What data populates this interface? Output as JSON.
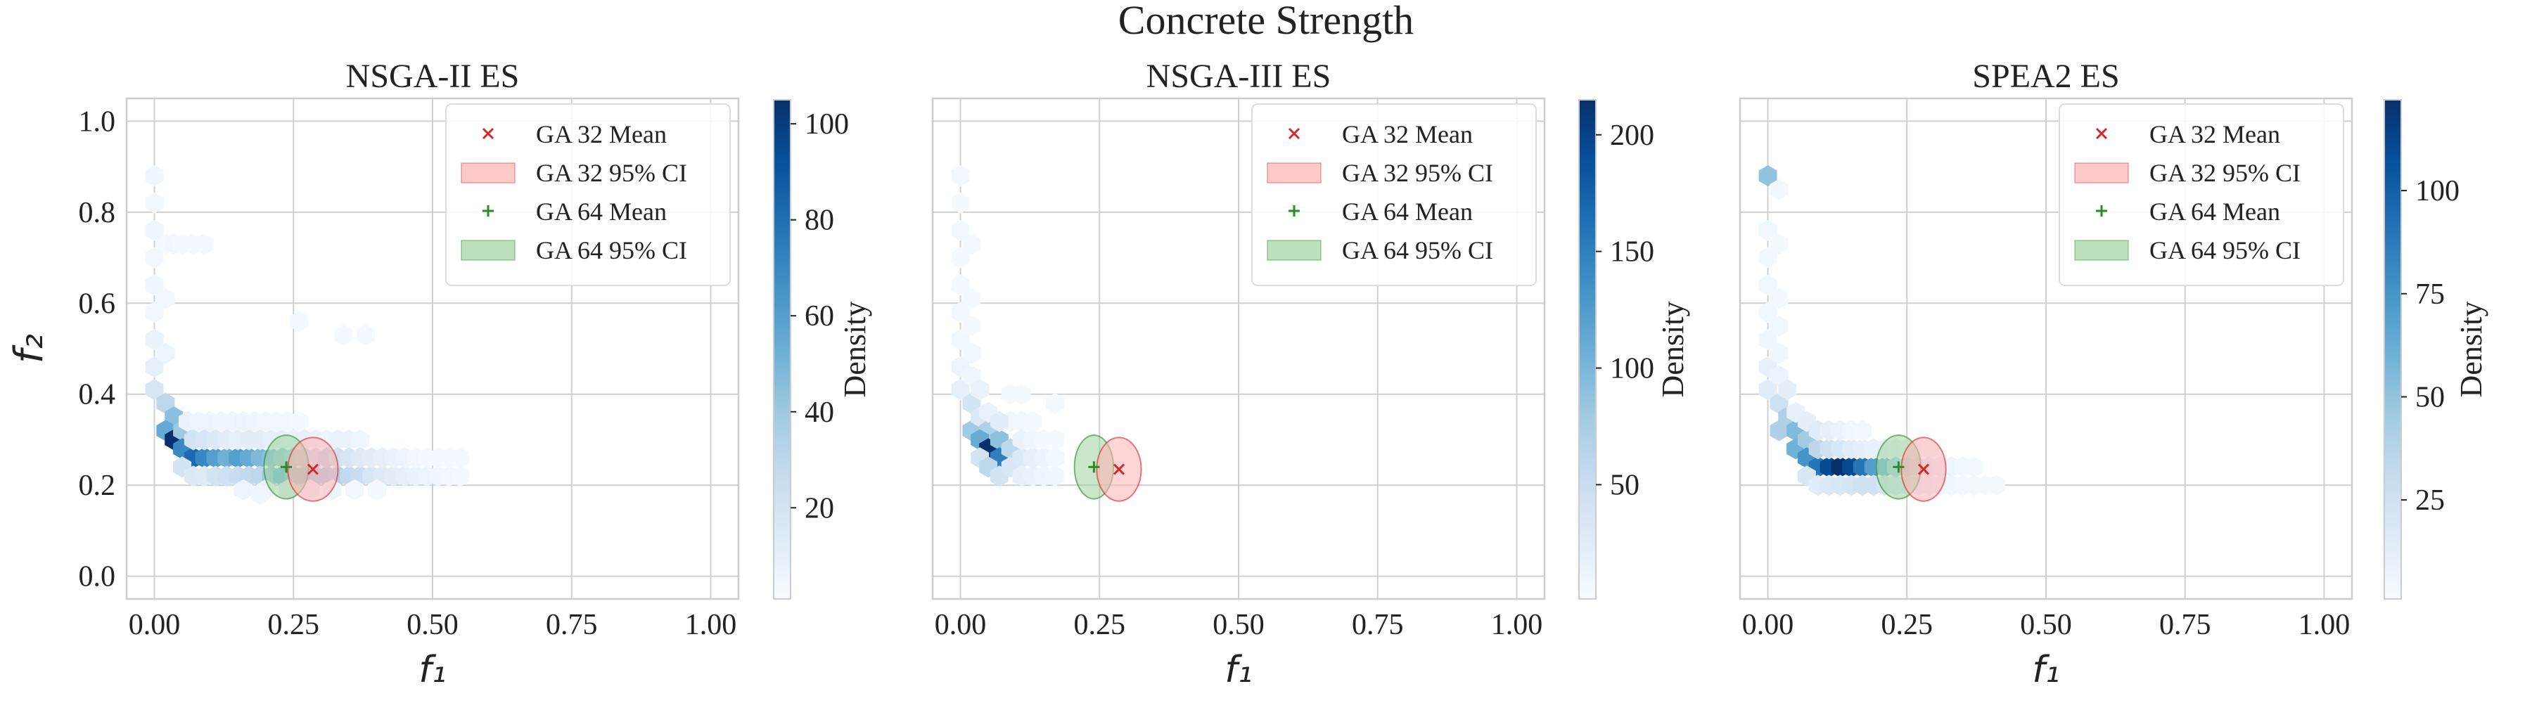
{
  "figure": {
    "title": "Concrete Strength",
    "colors": {
      "axes_bg": "#ffffff",
      "grid": "#d0d0d0",
      "frame": "#cccccc",
      "text": "#222222",
      "ga32": "#d62728",
      "ga32_fill": "#ffb3b3",
      "ga64": "#2a8a2a",
      "ga64_fill": "#9fd39f",
      "cmap": [
        "#f7fbff",
        "#deebf7",
        "#c6dbef",
        "#9ecae1",
        "#6baed6",
        "#4292c6",
        "#2171b5",
        "#08519c",
        "#08306b"
      ]
    }
  },
  "chart_data": [
    {
      "type": "hexbin",
      "title": "NSGA-II ES",
      "xlabel": "f₁",
      "ylabel": "f₂",
      "xlim": [
        -0.05,
        1.05
      ],
      "ylim": [
        -0.05,
        1.05
      ],
      "xticks": [
        0.0,
        0.25,
        0.5,
        0.75,
        1.0
      ],
      "xtick_labels": [
        "0.00",
        "0.25",
        "0.50",
        "0.75",
        "1.00"
      ],
      "yticks": [
        0.0,
        0.2,
        0.4,
        0.6,
        0.8,
        1.0
      ],
      "ytick_labels": [
        "0.0",
        "0.2",
        "0.4",
        "0.6",
        "0.8",
        "1.0"
      ],
      "grid": true,
      "legend_position": "top-right",
      "legend": [
        "GA 32 Mean",
        "GA 32 95% CI",
        "GA 64 Mean",
        "GA 64 95% CI"
      ],
      "colorbar": {
        "label": "Density",
        "min": 1,
        "max": 105,
        "ticks": [
          20,
          40,
          60,
          80,
          100
        ],
        "tick_labels": [
          "20",
          "40",
          "60",
          "80",
          "100"
        ]
      },
      "bins": [
        [
          0.0,
          0.88,
          5
        ],
        [
          0.0,
          0.82,
          4
        ],
        [
          0.0,
          0.76,
          5
        ],
        [
          0.0,
          0.7,
          4
        ],
        [
          0.0,
          0.64,
          5
        ],
        [
          0.0,
          0.58,
          4
        ],
        [
          0.0,
          0.52,
          8
        ],
        [
          0.0,
          0.46,
          10
        ],
        [
          0.0,
          0.41,
          18
        ],
        [
          0.02,
          0.73,
          3
        ],
        [
          0.02,
          0.61,
          4
        ],
        [
          0.02,
          0.49,
          6
        ],
        [
          0.02,
          0.38,
          30
        ],
        [
          0.035,
          0.73,
          4
        ],
        [
          0.035,
          0.35,
          45
        ],
        [
          0.05,
          0.73,
          3
        ],
        [
          0.07,
          0.73,
          3
        ],
        [
          0.09,
          0.73,
          3
        ],
        [
          0.02,
          0.32,
          55
        ],
        [
          0.035,
          0.3,
          105
        ],
        [
          0.05,
          0.32,
          40
        ],
        [
          0.05,
          0.28,
          70
        ],
        [
          0.07,
          0.26,
          82
        ],
        [
          0.09,
          0.26,
          70
        ],
        [
          0.11,
          0.26,
          60
        ],
        [
          0.13,
          0.26,
          52
        ],
        [
          0.15,
          0.26,
          60
        ],
        [
          0.17,
          0.26,
          55
        ],
        [
          0.19,
          0.26,
          48
        ],
        [
          0.21,
          0.26,
          45
        ],
        [
          0.07,
          0.3,
          20
        ],
        [
          0.09,
          0.3,
          18
        ],
        [
          0.11,
          0.3,
          15
        ],
        [
          0.13,
          0.3,
          12
        ],
        [
          0.15,
          0.3,
          10
        ],
        [
          0.17,
          0.3,
          12
        ],
        [
          0.19,
          0.3,
          12
        ],
        [
          0.21,
          0.3,
          10
        ],
        [
          0.23,
          0.3,
          10
        ],
        [
          0.25,
          0.3,
          8
        ],
        [
          0.27,
          0.3,
          10
        ],
        [
          0.29,
          0.3,
          8
        ],
        [
          0.31,
          0.3,
          6
        ],
        [
          0.33,
          0.3,
          8
        ],
        [
          0.35,
          0.3,
          8
        ],
        [
          0.37,
          0.3,
          5
        ],
        [
          0.06,
          0.34,
          8
        ],
        [
          0.08,
          0.34,
          6
        ],
        [
          0.1,
          0.34,
          6
        ],
        [
          0.12,
          0.34,
          5
        ],
        [
          0.14,
          0.34,
          5
        ],
        [
          0.16,
          0.34,
          6
        ],
        [
          0.18,
          0.34,
          5
        ],
        [
          0.2,
          0.34,
          4
        ],
        [
          0.22,
          0.34,
          4
        ],
        [
          0.24,
          0.34,
          4
        ],
        [
          0.26,
          0.34,
          3
        ],
        [
          0.05,
          0.24,
          20
        ],
        [
          0.07,
          0.22,
          15
        ],
        [
          0.09,
          0.22,
          14
        ],
        [
          0.11,
          0.22,
          20
        ],
        [
          0.13,
          0.22,
          22
        ],
        [
          0.15,
          0.22,
          25
        ],
        [
          0.17,
          0.22,
          28
        ],
        [
          0.19,
          0.22,
          30
        ],
        [
          0.21,
          0.22,
          40
        ],
        [
          0.23,
          0.22,
          50
        ],
        [
          0.25,
          0.22,
          45
        ],
        [
          0.27,
          0.22,
          45
        ],
        [
          0.29,
          0.22,
          40
        ],
        [
          0.31,
          0.22,
          38
        ],
        [
          0.33,
          0.22,
          35
        ],
        [
          0.35,
          0.22,
          28
        ],
        [
          0.37,
          0.22,
          25
        ],
        [
          0.39,
          0.22,
          18
        ],
        [
          0.41,
          0.22,
          14
        ],
        [
          0.43,
          0.22,
          12
        ],
        [
          0.45,
          0.22,
          10
        ],
        [
          0.47,
          0.22,
          8
        ],
        [
          0.49,
          0.22,
          6
        ],
        [
          0.51,
          0.22,
          5
        ],
        [
          0.53,
          0.22,
          4
        ],
        [
          0.55,
          0.22,
          3
        ],
        [
          0.23,
          0.26,
          40
        ],
        [
          0.25,
          0.26,
          35
        ],
        [
          0.27,
          0.26,
          30
        ],
        [
          0.29,
          0.26,
          25
        ],
        [
          0.31,
          0.26,
          30
        ],
        [
          0.33,
          0.26,
          22
        ],
        [
          0.35,
          0.26,
          18
        ],
        [
          0.37,
          0.26,
          14
        ],
        [
          0.39,
          0.26,
          12
        ],
        [
          0.41,
          0.26,
          10
        ],
        [
          0.43,
          0.26,
          8
        ],
        [
          0.45,
          0.26,
          6
        ],
        [
          0.47,
          0.26,
          4
        ],
        [
          0.49,
          0.26,
          3
        ],
        [
          0.51,
          0.26,
          3
        ],
        [
          0.53,
          0.26,
          3
        ],
        [
          0.55,
          0.26,
          3
        ],
        [
          0.16,
          0.19,
          6
        ],
        [
          0.2,
          0.19,
          8
        ],
        [
          0.24,
          0.19,
          10
        ],
        [
          0.28,
          0.19,
          8
        ],
        [
          0.32,
          0.19,
          6
        ],
        [
          0.36,
          0.19,
          4
        ],
        [
          0.4,
          0.19,
          3
        ],
        [
          0.19,
          0.18,
          5
        ],
        [
          0.26,
          0.56,
          3
        ],
        [
          0.34,
          0.53,
          3
        ],
        [
          0.38,
          0.53,
          3
        ]
      ],
      "ga32": {
        "mean": [
          0.285,
          0.235
        ],
        "ci_radius": [
          0.045,
          0.07
        ]
      },
      "ga64": {
        "mean": [
          0.237,
          0.24
        ],
        "ci_radius": [
          0.04,
          0.07
        ]
      }
    },
    {
      "type": "hexbin",
      "title": "NSGA-III ES",
      "xlabel": "f₁",
      "ylabel": "",
      "xlim": [
        -0.05,
        1.05
      ],
      "ylim": [
        -0.05,
        1.05
      ],
      "xticks": [
        0.0,
        0.25,
        0.5,
        0.75,
        1.0
      ],
      "xtick_labels": [
        "0.00",
        "0.25",
        "0.50",
        "0.75",
        "1.00"
      ],
      "yticks": [
        0.0,
        0.2,
        0.4,
        0.6,
        0.8,
        1.0
      ],
      "ytick_labels": [],
      "grid": true,
      "legend_position": "top-right",
      "legend": [
        "GA 32 Mean",
        "GA 32 95% CI",
        "GA 64 Mean",
        "GA 64 95% CI"
      ],
      "colorbar": {
        "label": "Density",
        "min": 1,
        "max": 215,
        "ticks": [
          50,
          100,
          150,
          200
        ],
        "tick_labels": [
          "50",
          "100",
          "150",
          "200"
        ]
      },
      "bins": [
        [
          0.0,
          0.88,
          6
        ],
        [
          0.0,
          0.82,
          5
        ],
        [
          0.0,
          0.76,
          6
        ],
        [
          0.0,
          0.7,
          5
        ],
        [
          0.0,
          0.64,
          5
        ],
        [
          0.0,
          0.58,
          6
        ],
        [
          0.0,
          0.52,
          8
        ],
        [
          0.0,
          0.46,
          12
        ],
        [
          0.0,
          0.41,
          20
        ],
        [
          0.02,
          0.73,
          5
        ],
        [
          0.02,
          0.61,
          5
        ],
        [
          0.02,
          0.55,
          5
        ],
        [
          0.02,
          0.49,
          8
        ],
        [
          0.02,
          0.44,
          10
        ],
        [
          0.02,
          0.38,
          40
        ],
        [
          0.035,
          0.41,
          15
        ],
        [
          0.02,
          0.32,
          80
        ],
        [
          0.035,
          0.35,
          30
        ],
        [
          0.05,
          0.32,
          70
        ],
        [
          0.035,
          0.3,
          110
        ],
        [
          0.05,
          0.28,
          215
        ],
        [
          0.07,
          0.3,
          90
        ],
        [
          0.07,
          0.26,
          150
        ],
        [
          0.09,
          0.28,
          60
        ],
        [
          0.035,
          0.26,
          40
        ],
        [
          0.05,
          0.24,
          60
        ],
        [
          0.07,
          0.22,
          40
        ],
        [
          0.09,
          0.24,
          35
        ],
        [
          0.11,
          0.26,
          30
        ],
        [
          0.11,
          0.22,
          20
        ],
        [
          0.13,
          0.22,
          15
        ],
        [
          0.13,
          0.26,
          20
        ],
        [
          0.15,
          0.26,
          14
        ],
        [
          0.15,
          0.22,
          12
        ],
        [
          0.17,
          0.22,
          10
        ],
        [
          0.17,
          0.26,
          8
        ],
        [
          0.09,
          0.34,
          10
        ],
        [
          0.11,
          0.34,
          8
        ],
        [
          0.13,
          0.34,
          5
        ],
        [
          0.11,
          0.3,
          15
        ],
        [
          0.13,
          0.3,
          10
        ],
        [
          0.15,
          0.3,
          6
        ],
        [
          0.17,
          0.3,
          5
        ],
        [
          0.09,
          0.4,
          5
        ],
        [
          0.11,
          0.4,
          5
        ],
        [
          0.17,
          0.38,
          4
        ],
        [
          0.05,
          0.36,
          15
        ],
        [
          0.07,
          0.34,
          25
        ]
      ],
      "ga32": {
        "mean": [
          0.285,
          0.235
        ],
        "ci_radius": [
          0.04,
          0.07
        ]
      },
      "ga64": {
        "mean": [
          0.24,
          0.24
        ],
        "ci_radius": [
          0.035,
          0.07
        ]
      }
    },
    {
      "type": "hexbin",
      "title": "SPEA2 ES",
      "xlabel": "f₁",
      "ylabel": "",
      "xlim": [
        -0.05,
        1.05
      ],
      "ylim": [
        -0.05,
        1.05
      ],
      "xticks": [
        0.0,
        0.25,
        0.5,
        0.75,
        1.0
      ],
      "xtick_labels": [
        "0.00",
        "0.25",
        "0.50",
        "0.75",
        "1.00"
      ],
      "yticks": [
        0.0,
        0.2,
        0.4,
        0.6,
        0.8,
        1.0
      ],
      "ytick_labels": [],
      "grid": true,
      "legend_position": "top-right",
      "legend": [
        "GA 32 Mean",
        "GA 32 95% CI",
        "GA 64 Mean",
        "GA 64 95% CI"
      ],
      "colorbar": {
        "label": "Density",
        "min": 1,
        "max": 122,
        "ticks": [
          25,
          50,
          75,
          100
        ],
        "tick_labels": [
          "25",
          "50",
          "75",
          "100"
        ]
      },
      "bins": [
        [
          0.0,
          0.88,
          50
        ],
        [
          0.02,
          0.85,
          4
        ],
        [
          0.0,
          0.76,
          5
        ],
        [
          0.0,
          0.7,
          4
        ],
        [
          0.0,
          0.64,
          5
        ],
        [
          0.0,
          0.58,
          5
        ],
        [
          0.0,
          0.52,
          6
        ],
        [
          0.0,
          0.46,
          10
        ],
        [
          0.0,
          0.41,
          15
        ],
        [
          0.02,
          0.73,
          3
        ],
        [
          0.02,
          0.61,
          4
        ],
        [
          0.02,
          0.55,
          5
        ],
        [
          0.02,
          0.49,
          6
        ],
        [
          0.02,
          0.44,
          8
        ],
        [
          0.02,
          0.38,
          25
        ],
        [
          0.035,
          0.35,
          40
        ],
        [
          0.035,
          0.41,
          12
        ],
        [
          0.02,
          0.32,
          40
        ],
        [
          0.05,
          0.32,
          55
        ],
        [
          0.05,
          0.28,
          60
        ],
        [
          0.07,
          0.3,
          45
        ],
        [
          0.07,
          0.26,
          75
        ],
        [
          0.09,
          0.24,
          90
        ],
        [
          0.11,
          0.24,
          110
        ],
        [
          0.13,
          0.24,
          122
        ],
        [
          0.15,
          0.24,
          110
        ],
        [
          0.17,
          0.24,
          90
        ],
        [
          0.19,
          0.24,
          70
        ],
        [
          0.21,
          0.24,
          60
        ],
        [
          0.09,
          0.28,
          35
        ],
        [
          0.11,
          0.28,
          25
        ],
        [
          0.13,
          0.28,
          20
        ],
        [
          0.15,
          0.28,
          15
        ],
        [
          0.17,
          0.28,
          12
        ],
        [
          0.19,
          0.28,
          10
        ],
        [
          0.21,
          0.28,
          10
        ],
        [
          0.23,
          0.28,
          8
        ],
        [
          0.25,
          0.28,
          6
        ],
        [
          0.27,
          0.28,
          5
        ],
        [
          0.29,
          0.28,
          4
        ],
        [
          0.07,
          0.22,
          20
        ],
        [
          0.09,
          0.2,
          15
        ],
        [
          0.11,
          0.2,
          18
        ],
        [
          0.13,
          0.2,
          20
        ],
        [
          0.15,
          0.2,
          22
        ],
        [
          0.17,
          0.2,
          25
        ],
        [
          0.19,
          0.2,
          25
        ],
        [
          0.21,
          0.2,
          22
        ],
        [
          0.23,
          0.2,
          18
        ],
        [
          0.25,
          0.2,
          15
        ],
        [
          0.27,
          0.2,
          12
        ],
        [
          0.29,
          0.2,
          10
        ],
        [
          0.31,
          0.2,
          8
        ],
        [
          0.33,
          0.2,
          6
        ],
        [
          0.35,
          0.2,
          5
        ],
        [
          0.37,
          0.2,
          4
        ],
        [
          0.39,
          0.2,
          3
        ],
        [
          0.41,
          0.2,
          3
        ],
        [
          0.23,
          0.24,
          40
        ],
        [
          0.25,
          0.24,
          30
        ],
        [
          0.27,
          0.24,
          20
        ],
        [
          0.29,
          0.24,
          14
        ],
        [
          0.31,
          0.24,
          10
        ],
        [
          0.33,
          0.24,
          7
        ],
        [
          0.35,
          0.24,
          5
        ],
        [
          0.37,
          0.24,
          4
        ],
        [
          0.05,
          0.36,
          10
        ],
        [
          0.07,
          0.34,
          12
        ],
        [
          0.09,
          0.32,
          15
        ],
        [
          0.11,
          0.32,
          10
        ],
        [
          0.13,
          0.32,
          8
        ],
        [
          0.15,
          0.32,
          5
        ],
        [
          0.17,
          0.32,
          4
        ]
      ],
      "ga32": {
        "mean": [
          0.28,
          0.235
        ],
        "ci_radius": [
          0.04,
          0.07
        ]
      },
      "ga64": {
        "mean": [
          0.235,
          0.24
        ],
        "ci_radius": [
          0.04,
          0.07
        ]
      }
    }
  ]
}
